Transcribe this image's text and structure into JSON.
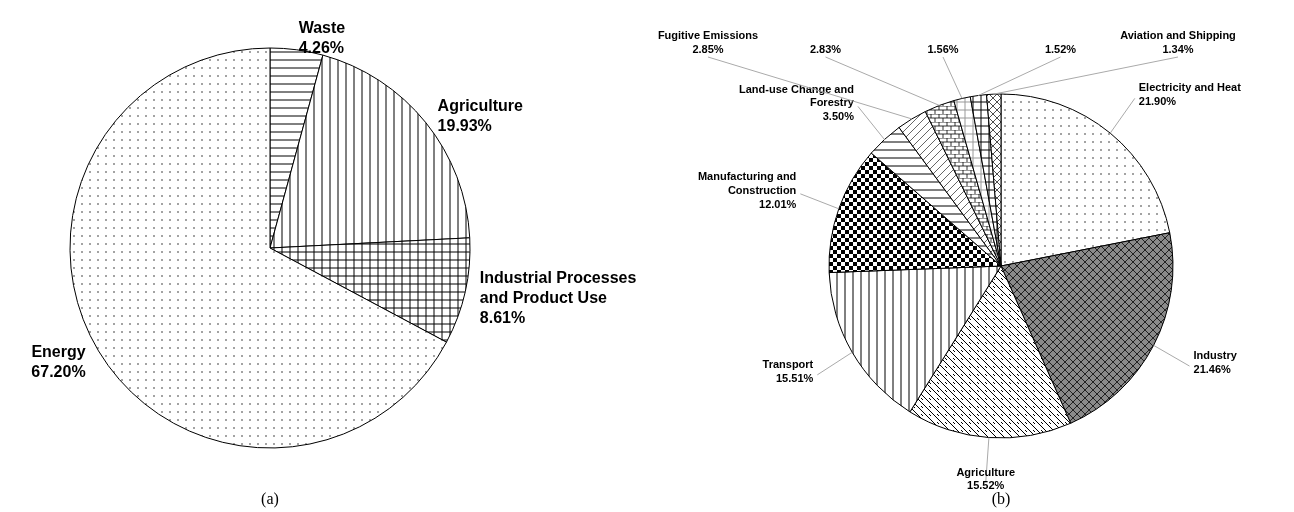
{
  "chart_data": [
    {
      "type": "pie",
      "categories": [
        "Waste",
        "Agriculture",
        "Industrial Processes and Product Use",
        "Energy"
      ],
      "values": [
        4.26,
        19.93,
        8.61,
        67.2
      ],
      "value_labels": [
        "4.26%",
        "19.93%",
        "8.61%",
        "67.20%"
      ],
      "colors": [
        "#ffffff",
        "#ffffff",
        "#ffffff",
        "#ffffff"
      ],
      "annotations": [
        "(a)"
      ]
    },
    {
      "type": "pie",
      "categories": [
        "Electricity and Heat",
        "Industry",
        "Agriculture",
        "Transport",
        "Manufacturing and Construction",
        "Land-use Change and Forestry",
        "Fugitive Emissions",
        null,
        null,
        null,
        "Aviation and Shipping"
      ],
      "values": [
        21.9,
        21.46,
        15.52,
        15.51,
        12.01,
        3.5,
        2.85,
        2.83,
        1.56,
        1.52,
        1.34
      ],
      "value_labels": [
        "21.90%",
        "21.46%",
        "15.52%",
        "15.51%",
        "12.01%",
        "3.50%",
        "2.85%",
        "2.83%",
        "1.56%",
        "1.52%",
        "1.34%"
      ],
      "colors": [
        "#ffffff",
        "#8a8a8a",
        "#ffffff",
        "#ffffff",
        "#ffffff",
        "#ffffff",
        "#ffffff",
        "#ffffff",
        "#ffffff",
        "#ffffff",
        "#ffffff"
      ],
      "annotations": [
        "(b)"
      ]
    }
  ]
}
